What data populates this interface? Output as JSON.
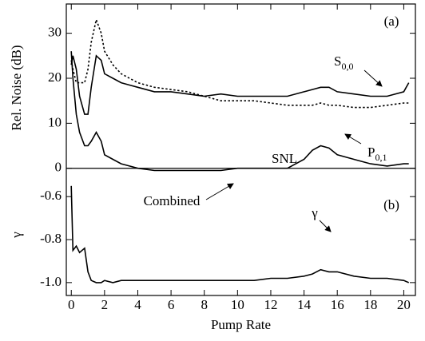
{
  "chart_data": [
    {
      "type": "line",
      "ylabel": "Rel. Noise (dB)",
      "xlim": [
        -0.3,
        20.7
      ],
      "ylim": [
        -2,
        36.5
      ],
      "yticks": [
        0,
        10,
        20,
        30
      ],
      "reference_line": 0,
      "x": [
        0,
        0.1,
        0.3,
        0.5,
        0.8,
        1,
        1.2,
        1.5,
        1.8,
        2,
        2.5,
        3,
        3.5,
        4,
        5,
        6,
        7,
        8,
        9,
        10,
        11,
        12,
        13,
        14,
        14.5,
        15,
        15.5,
        16,
        17,
        18,
        19,
        20,
        20.3
      ],
      "series": [
        {
          "color": "#000000",
          "dash": "solid",
          "values": [
            23,
            25,
            22,
            16,
            12,
            12,
            18,
            25,
            24,
            21,
            20,
            19,
            18.5,
            18,
            17,
            17,
            16.5,
            16,
            16.5,
            16,
            16,
            16,
            16,
            17,
            17.5,
            18,
            18,
            17,
            16.5,
            16,
            16,
            17,
            19
          ]
        },
        {
          "color": "#000000",
          "dash": "dotted",
          "values": [
            24,
            22,
            19,
            19,
            19,
            22,
            28,
            33,
            30,
            26,
            23,
            21,
            20,
            19,
            18,
            17.5,
            17,
            16,
            15,
            15,
            15,
            14.5,
            14,
            14,
            14,
            14.5,
            14,
            14,
            13.5,
            13.5,
            14,
            14.5,
            14.5
          ]
        },
        {
          "color": "#000000",
          "dash": "solid",
          "values": [
            26,
            20,
            12,
            8,
            5,
            5,
            6,
            8,
            6,
            3,
            2,
            1,
            0.5,
            0,
            -0.5,
            -0.5,
            -0.5,
            -0.5,
            -0.5,
            0,
            0,
            0,
            0,
            2,
            4,
            5,
            4.5,
            3,
            2,
            1,
            0.5,
            1,
            1
          ]
        }
      ],
      "annotations": [
        {
          "text": "(a)"
        },
        {
          "text": "S",
          "sub": "0,0"
        },
        {
          "text": "P",
          "sub": "0,1"
        },
        {
          "text": "SNL"
        },
        {
          "text": "Combined"
        }
      ]
    },
    {
      "type": "line",
      "ylabel": "γ",
      "xlabel": "Pump Rate",
      "xlim": [
        -0.3,
        20.7
      ],
      "ylim": [
        -1.06,
        -0.51
      ],
      "yticks": [
        -0.6,
        -0.8,
        {
          "value": -1,
          "label": "-1.0"
        }
      ],
      "xticks": [
        0,
        2,
        4,
        6,
        8,
        10,
        12,
        14,
        16,
        18,
        20
      ],
      "x": [
        0,
        0.1,
        0.3,
        0.5,
        0.8,
        1,
        1.2,
        1.5,
        1.8,
        2,
        2.5,
        3,
        3.5,
        4,
        5,
        6,
        7,
        8,
        9,
        10,
        11,
        12,
        13,
        14,
        14.5,
        15,
        15.5,
        16,
        17,
        18,
        19,
        20,
        20.3
      ],
      "series": [
        {
          "color": "#000000",
          "dash": "solid",
          "values": [
            -0.55,
            -0.85,
            -0.83,
            -0.86,
            -0.84,
            -0.95,
            -0.99,
            -1,
            -1,
            -0.99,
            -1,
            -0.99,
            -0.99,
            -0.99,
            -0.99,
            -0.99,
            -0.99,
            -0.99,
            -0.99,
            -0.99,
            -0.99,
            -0.98,
            -0.98,
            -0.97,
            -0.96,
            -0.94,
            -0.95,
            -0.95,
            -0.97,
            -0.98,
            -0.98,
            -0.99,
            -1
          ]
        }
      ],
      "annotations": [
        {
          "text": "(b)"
        },
        {
          "text": "γ"
        }
      ]
    }
  ]
}
